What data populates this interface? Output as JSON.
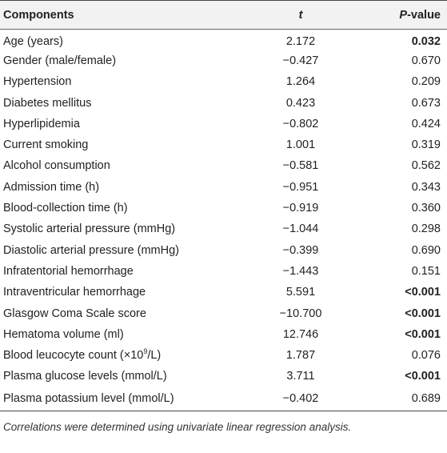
{
  "table": {
    "headers": {
      "components": "Components",
      "t": "t",
      "p_italic": "P",
      "p_rest": "-value"
    },
    "rows": [
      {
        "component": "Age (years)",
        "t": "2.172",
        "p": "0.032",
        "p_bold": true
      },
      {
        "component": "Gender (male/female)",
        "t": "−0.427",
        "p": "0.670",
        "p_bold": false
      },
      {
        "component": "Hypertension",
        "t": "1.264",
        "p": "0.209",
        "p_bold": false
      },
      {
        "component": "Diabetes mellitus",
        "t": "0.423",
        "p": "0.673",
        "p_bold": false
      },
      {
        "component": "Hyperlipidemia",
        "t": "−0.802",
        "p": "0.424",
        "p_bold": false
      },
      {
        "component": "Current smoking",
        "t": "1.001",
        "p": "0.319",
        "p_bold": false
      },
      {
        "component": "Alcohol consumption",
        "t": "−0.581",
        "p": "0.562",
        "p_bold": false
      },
      {
        "component": "Admission time (h)",
        "t": "−0.951",
        "p": "0.343",
        "p_bold": false
      },
      {
        "component": "Blood-collection time (h)",
        "t": "−0.919",
        "p": "0.360",
        "p_bold": false
      },
      {
        "component": "Systolic arterial pressure (mmHg)",
        "t": "−1.044",
        "p": "0.298",
        "p_bold": false
      },
      {
        "component": "Diastolic arterial pressure (mmHg)",
        "t": "−0.399",
        "p": "0.690",
        "p_bold": false
      },
      {
        "component": "Infratentorial hemorrhage",
        "t": "−1.443",
        "p": "0.151",
        "p_bold": false
      },
      {
        "component": "Intraventricular hemorrhage",
        "t": "5.591",
        "p": "<0.001",
        "p_bold": true
      },
      {
        "component": "Glasgow Coma Scale score",
        "t": "−10.700",
        "p": "<0.001",
        "p_bold": true
      },
      {
        "component": "Hematoma volume (ml)",
        "t": "12.746",
        "p": "<0.001",
        "p_bold": true
      },
      {
        "component_prefix": "Blood leucocyte count (×10",
        "component_sup": "9",
        "component_suffix": "/L)",
        "t": "1.787",
        "p": "0.076",
        "p_bold": false
      },
      {
        "component": "Plasma glucose levels (mmol/L)",
        "t": "3.711",
        "p": "<0.001",
        "p_bold": true
      },
      {
        "component": "Plasma potassium level (mmol/L)",
        "t": "−0.402",
        "p": "0.689",
        "p_bold": false
      }
    ]
  },
  "note": "Correlations were determined using univariate linear regression analysis."
}
